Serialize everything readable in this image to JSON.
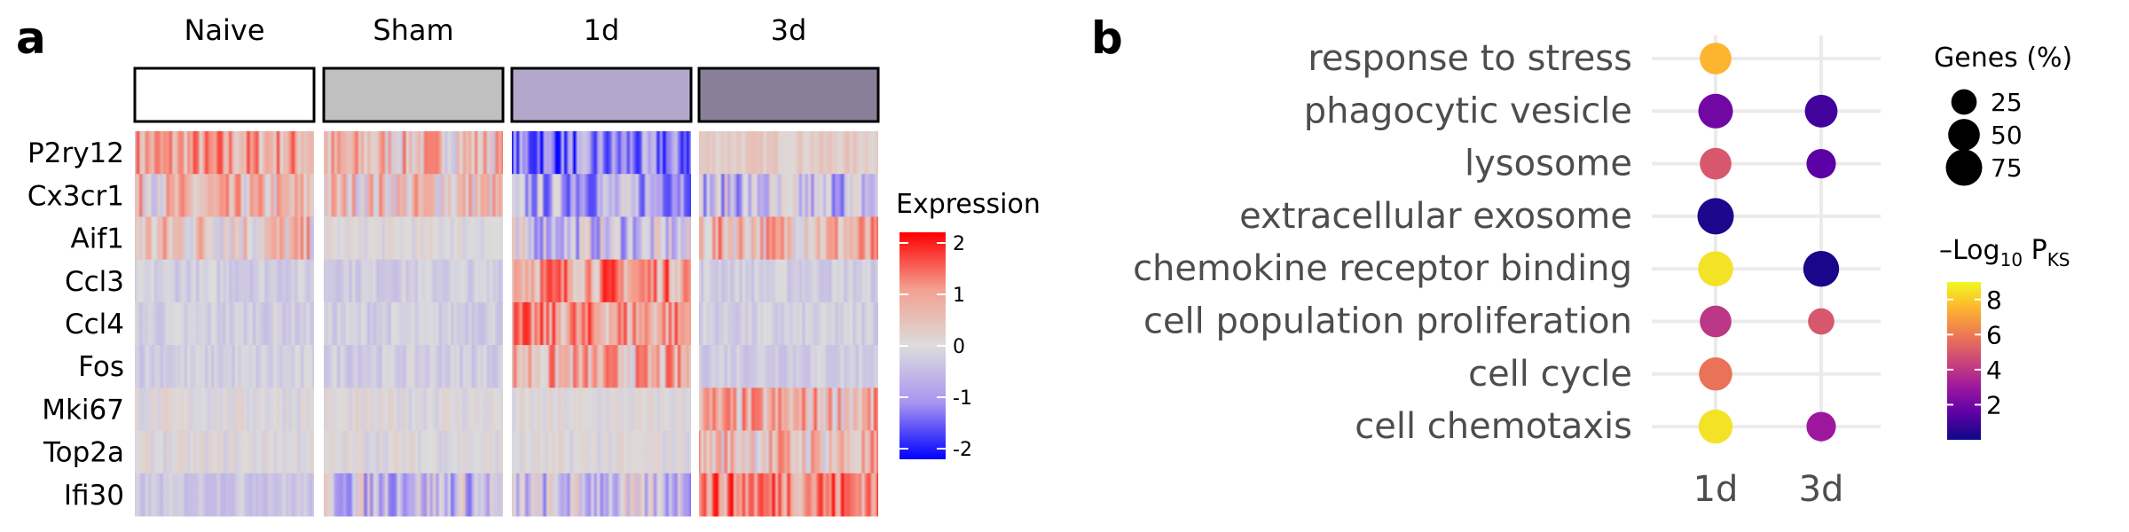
{
  "panel_a": {
    "label": "a",
    "chart_data": {
      "type": "heatmap",
      "groups": [
        "Naive",
        "Sham",
        "1d",
        "3d"
      ],
      "group_colors": [
        "#ffffff",
        "#c0c0c0",
        "#b3a8cc",
        "#8a7f98"
      ],
      "genes": [
        "P2ry12",
        "Cx3cr1",
        "Aif1",
        "Ccl3",
        "Ccl4",
        "Fos",
        "Mki67",
        "Top2a",
        "Ifi30"
      ],
      "mean_expression": [
        [
          0.8,
          0.5,
          -1.2,
          0.3
        ],
        [
          0.4,
          0.4,
          -0.7,
          -0.5
        ],
        [
          0.4,
          0.0,
          -0.4,
          0.6
        ],
        [
          -0.2,
          -0.2,
          1.0,
          -0.2
        ],
        [
          -0.2,
          -0.2,
          0.9,
          -0.2
        ],
        [
          -0.2,
          -0.2,
          0.6,
          -0.2
        ],
        [
          0.0,
          0.0,
          0.0,
          0.6
        ],
        [
          0.0,
          0.0,
          0.0,
          0.5
        ],
        [
          -0.3,
          -0.4,
          -0.4,
          1.2
        ]
      ],
      "legend": {
        "title": "Expression",
        "ticks": [
          "2",
          "1",
          "0",
          "-1",
          "-2"
        ],
        "range": [
          -2,
          2
        ],
        "colors": [
          "#0000ff",
          "#a895f0",
          "#dcdcdc",
          "#f3a090",
          "#ff0000"
        ]
      }
    }
  },
  "panel_b": {
    "label": "b",
    "chart_data": {
      "type": "scatter",
      "x": [
        "1d",
        "3d"
      ],
      "terms": [
        "response to stress",
        "phagocytic vesicle",
        "lysosome",
        "extracellular exosome",
        "chemokine receptor binding",
        "cell population proliferation",
        "cell cycle",
        "cell chemotaxis"
      ],
      "points": [
        {
          "term": "response to stress",
          "x": "1d",
          "genes_pct": 50,
          "neglog10_p": 7.5
        },
        {
          "term": "phagocytic vesicle",
          "x": "1d",
          "genes_pct": 65,
          "neglog10_p": 2.0
        },
        {
          "term": "phagocytic vesicle",
          "x": "3d",
          "genes_pct": 55,
          "neglog10_p": 1.0
        },
        {
          "term": "lysosome",
          "x": "1d",
          "genes_pct": 50,
          "neglog10_p": 5.0
        },
        {
          "term": "lysosome",
          "x": "3d",
          "genes_pct": 40,
          "neglog10_p": 1.5
        },
        {
          "term": "extracellular exosome",
          "x": "1d",
          "genes_pct": 75,
          "neglog10_p": 0.3
        },
        {
          "term": "chemokine receptor binding",
          "x": "1d",
          "genes_pct": 68,
          "neglog10_p": 8.5
        },
        {
          "term": "chemokine receptor binding",
          "x": "3d",
          "genes_pct": 72,
          "neglog10_p": 0.2
        },
        {
          "term": "cell population proliferation",
          "x": "1d",
          "genes_pct": 50,
          "neglog10_p": 4.0
        },
        {
          "term": "cell population proliferation",
          "x": "3d",
          "genes_pct": 28,
          "neglog10_p": 5.0
        },
        {
          "term": "cell cycle",
          "x": "1d",
          "genes_pct": 58,
          "neglog10_p": 5.8
        },
        {
          "term": "cell chemotaxis",
          "x": "1d",
          "genes_pct": 62,
          "neglog10_p": 8.5
        },
        {
          "term": "cell chemotaxis",
          "x": "3d",
          "genes_pct": 40,
          "neglog10_p": 3.0
        }
      ],
      "size_legend": {
        "title": "Genes (%)",
        "values": [
          25,
          50,
          75
        ]
      },
      "color_legend": {
        "title_prefix": "–Log",
        "title_sub": "10",
        "title_main": " P",
        "title_subscript": "KS",
        "ticks": [
          8,
          6,
          4,
          2
        ],
        "range": [
          0,
          9
        ],
        "colors": [
          "#0d0887",
          "#5c01a6",
          "#9c179e",
          "#cc4778",
          "#ed7953",
          "#fdb42f",
          "#f0f921"
        ]
      },
      "grid": true
    }
  }
}
